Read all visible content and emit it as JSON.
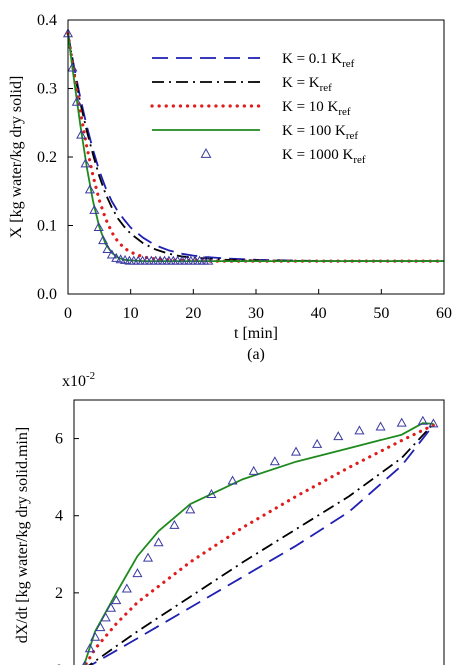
{
  "chart_data": [
    {
      "type": "line",
      "panel_label": "(a)",
      "xlabel": "t [min]",
      "ylabel": "X [kg water/kg dry solid]",
      "xlim": [
        0,
        60
      ],
      "ylim": [
        0,
        0.4
      ],
      "xticks": [
        "0",
        "10",
        "20",
        "30",
        "40",
        "50",
        "60"
      ],
      "yticks": [
        "0.0",
        "0.1",
        "0.2",
        "0.3",
        "0.4"
      ],
      "grid": false,
      "legend_position": "top-right",
      "series": [
        {
          "name": "K = 0.1 K",
          "name_sub": "ref",
          "color": "#1f1fb4",
          "style": "dashed",
          "x": [
            0,
            1,
            2,
            3,
            4,
            5,
            6,
            7,
            8,
            9,
            10,
            12,
            14,
            16,
            18,
            20,
            22,
            25,
            30,
            35,
            40,
            50,
            60
          ],
          "y": [
            0.38,
            0.33,
            0.285,
            0.245,
            0.21,
            0.18,
            0.155,
            0.135,
            0.12,
            0.108,
            0.097,
            0.082,
            0.071,
            0.064,
            0.059,
            0.056,
            0.054,
            0.052,
            0.05,
            0.049,
            0.048,
            0.048,
            0.048
          ]
        },
        {
          "name": "K = K",
          "name_sub": "ref",
          "color": "#000000",
          "style": "dashdot",
          "x": [
            0,
            1,
            2,
            3,
            4,
            5,
            6,
            7,
            8,
            9,
            10,
            12,
            14,
            16,
            18,
            20,
            22,
            25,
            30,
            40,
            60
          ],
          "y": [
            0.38,
            0.325,
            0.278,
            0.238,
            0.203,
            0.172,
            0.146,
            0.126,
            0.11,
            0.098,
            0.088,
            0.074,
            0.065,
            0.059,
            0.055,
            0.053,
            0.052,
            0.05,
            0.049,
            0.048,
            0.048
          ]
        },
        {
          "name": "K = 10 K",
          "name_sub": "ref",
          "color": "#e01c1c",
          "style": "dotted",
          "x": [
            0,
            1,
            2,
            3,
            4,
            5,
            6,
            7,
            8,
            9,
            10,
            12,
            14,
            16,
            18,
            20,
            22,
            25,
            30,
            40,
            60
          ],
          "y": [
            0.38,
            0.32,
            0.265,
            0.215,
            0.172,
            0.137,
            0.11,
            0.09,
            0.076,
            0.067,
            0.061,
            0.054,
            0.051,
            0.05,
            0.049,
            0.049,
            0.048,
            0.048,
            0.048,
            0.048,
            0.048
          ]
        },
        {
          "name": "K = 100 K",
          "name_sub": "ref",
          "color": "#1e8a1e",
          "style": "solid",
          "x": [
            0,
            1,
            2,
            3,
            4,
            5,
            6,
            7,
            8,
            9,
            10,
            12,
            14,
            16,
            18,
            20,
            22,
            25,
            30,
            40,
            60
          ],
          "y": [
            0.38,
            0.31,
            0.245,
            0.185,
            0.135,
            0.098,
            0.073,
            0.06,
            0.053,
            0.05,
            0.049,
            0.048,
            0.048,
            0.048,
            0.048,
            0.048,
            0.048,
            0.048,
            0.048,
            0.048,
            0.048
          ]
        },
        {
          "name": "K = 1000 K",
          "name_sub": "ref",
          "color": "#3a3aa0",
          "style": "marker-triangle",
          "x": [
            0,
            0.7,
            1.4,
            2.1,
            2.8,
            3.5,
            4.2,
            4.9,
            5.6,
            6.3,
            7.0,
            7.7,
            8.4,
            9.1,
            9.8,
            10.5,
            11.2,
            11.9,
            12.6,
            13.3,
            14.0,
            14.7,
            15.4,
            16.1,
            16.8,
            17.5,
            18.2,
            18.9,
            19.6,
            20.3,
            21.0,
            21.7,
            22.4
          ],
          "y": [
            0.38,
            0.33,
            0.28,
            0.232,
            0.19,
            0.152,
            0.122,
            0.097,
            0.078,
            0.065,
            0.057,
            0.052,
            0.05,
            0.049,
            0.048,
            0.048,
            0.048,
            0.048,
            0.048,
            0.048,
            0.048,
            0.048,
            0.048,
            0.048,
            0.048,
            0.048,
            0.048,
            0.048,
            0.048,
            0.048,
            0.048,
            0.048,
            0.048
          ]
        }
      ]
    },
    {
      "type": "line",
      "ylabel": "dX/dt [kg water/kg dry solid.min]",
      "y_multiplier": "x10",
      "y_multiplier_exp": "-2",
      "xlim": [
        0.04,
        0.39
      ],
      "ylim": [
        0,
        7
      ],
      "yticks": [
        "0",
        "2",
        "4",
        "6"
      ],
      "grid": false,
      "series": [
        {
          "name": "K = 0.1 K",
          "color": "#1f1fb4",
          "style": "dashed",
          "x": [
            0.048,
            0.1,
            0.15,
            0.2,
            0.25,
            0.3,
            0.35,
            0.38
          ],
          "y": [
            0,
            0.82,
            1.62,
            2.42,
            3.22,
            4.1,
            5.3,
            6.35
          ]
        },
        {
          "name": "K = K",
          "color": "#000000",
          "style": "dashdot",
          "x": [
            0.048,
            0.1,
            0.15,
            0.2,
            0.25,
            0.3,
            0.35,
            0.38
          ],
          "y": [
            0,
            1.0,
            1.9,
            2.8,
            3.65,
            4.5,
            5.5,
            6.38
          ]
        },
        {
          "name": "K = 10 K",
          "color": "#e01c1c",
          "style": "dotted",
          "x": [
            0.048,
            0.06,
            0.08,
            0.1,
            0.15,
            0.2,
            0.25,
            0.3,
            0.35,
            0.38
          ],
          "y": [
            0,
            0.55,
            1.2,
            1.75,
            2.8,
            3.7,
            4.5,
            5.25,
            5.95,
            6.35
          ]
        },
        {
          "name": "K = 100 K",
          "color": "#1e8a1e",
          "style": "solid",
          "x": [
            0.048,
            0.06,
            0.08,
            0.1,
            0.12,
            0.15,
            0.2,
            0.25,
            0.3,
            0.35,
            0.37,
            0.38
          ],
          "y": [
            0,
            1.0,
            2.0,
            2.95,
            3.6,
            4.3,
            4.95,
            5.4,
            5.75,
            6.1,
            6.4,
            6.38
          ]
        },
        {
          "name": "K = 1000 K",
          "color": "#3a3aa0",
          "style": "marker-triangle",
          "x": [
            0.05,
            0.055,
            0.06,
            0.065,
            0.07,
            0.075,
            0.08,
            0.09,
            0.1,
            0.11,
            0.12,
            0.135,
            0.15,
            0.17,
            0.19,
            0.21,
            0.23,
            0.25,
            0.27,
            0.29,
            0.31,
            0.33,
            0.35,
            0.37,
            0.38
          ],
          "y": [
            0.1,
            0.55,
            0.85,
            1.1,
            1.35,
            1.6,
            1.8,
            2.1,
            2.5,
            2.9,
            3.3,
            3.75,
            4.15,
            4.55,
            4.9,
            5.15,
            5.4,
            5.65,
            5.85,
            6.05,
            6.2,
            6.3,
            6.4,
            6.45,
            6.38
          ]
        }
      ]
    }
  ]
}
